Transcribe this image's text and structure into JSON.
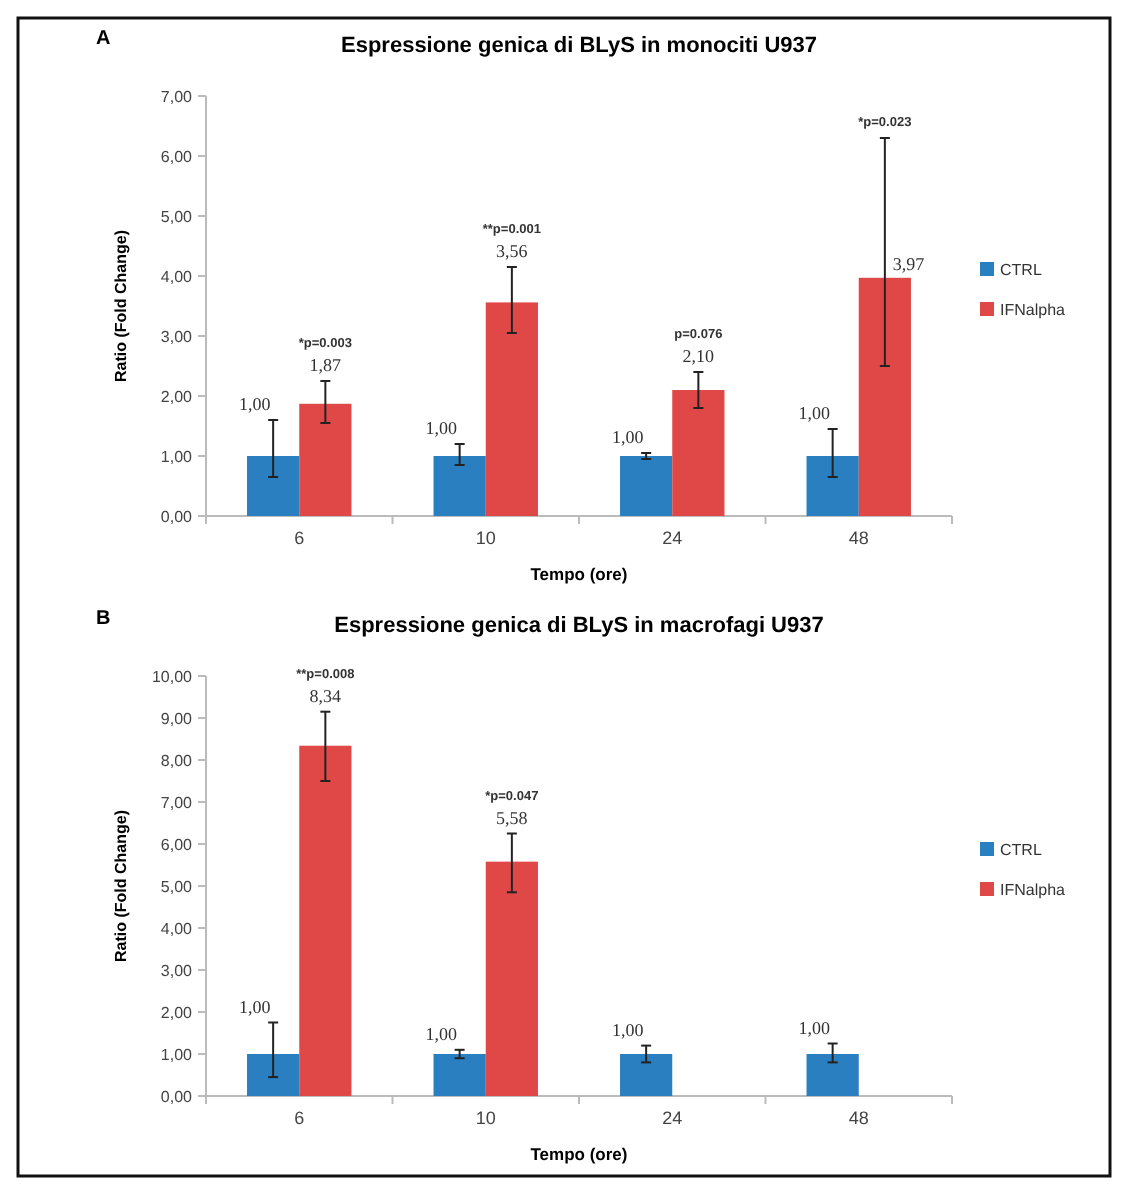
{
  "chart_data": [
    {
      "type": "bar",
      "title": "Espressione genica di BLyS in monociti U937",
      "xlabel": "Tempo (ore)",
      "ylabel": "Ratio (Fold Change)",
      "categories": [
        "6",
        "10",
        "24",
        "48"
      ],
      "ylim": [
        0,
        7
      ],
      "yticks": [
        {
          "value": 0,
          "label": "0,00"
        },
        {
          "value": 1,
          "label": "1,00"
        },
        {
          "value": 2,
          "label": "2,00"
        },
        {
          "value": 3,
          "label": "3,00"
        },
        {
          "value": 4,
          "label": "4,00"
        },
        {
          "value": 5,
          "label": "5,00"
        },
        {
          "value": 6,
          "label": "6,00"
        },
        {
          "value": 7,
          "label": "7,00"
        }
      ],
      "legend": "right",
      "series": [
        {
          "name": "CTRL",
          "color": "#2a7fc0",
          "values": [
            1.0,
            1.0,
            1.0,
            1.0
          ],
          "errors": [
            [
              0.65,
              1.6
            ],
            [
              0.85,
              1.2
            ],
            [
              0.95,
              1.05
            ],
            [
              0.65,
              1.45
            ]
          ],
          "value_labels": [
            "1,00",
            "1,00",
            "1,00",
            "1,00"
          ]
        },
        {
          "name": "IFNalpha",
          "color": "#e04848",
          "values": [
            1.87,
            3.56,
            2.1,
            3.97
          ],
          "errors": [
            [
              1.55,
              2.25
            ],
            [
              3.05,
              4.15
            ],
            [
              1.8,
              2.4
            ],
            [
              2.5,
              6.3
            ]
          ],
          "value_labels": [
            "1,87",
            "3,56",
            "2,10",
            "3,97"
          ]
        }
      ],
      "annotations": [
        "A",
        "*p=0.003",
        "**p=0.001",
        "p=0.076",
        "*p=0.023"
      ]
    },
    {
      "type": "bar",
      "title": "Espressione genica di BLyS in macrofagi U937",
      "xlabel": "Tempo (ore)",
      "ylabel": "Ratio (Fold Change)",
      "categories": [
        "6",
        "10",
        "24",
        "48"
      ],
      "ylim": [
        0,
        10
      ],
      "yticks": [
        {
          "value": 0,
          "label": "0,00"
        },
        {
          "value": 1,
          "label": "1,00"
        },
        {
          "value": 2,
          "label": "2,00"
        },
        {
          "value": 3,
          "label": "3,00"
        },
        {
          "value": 4,
          "label": "4,00"
        },
        {
          "value": 5,
          "label": "5,00"
        },
        {
          "value": 6,
          "label": "6,00"
        },
        {
          "value": 7,
          "label": "7,00"
        },
        {
          "value": 8,
          "label": "8,00"
        },
        {
          "value": 9,
          "label": "9,00"
        },
        {
          "value": 10,
          "label": "10,00"
        }
      ],
      "legend": "right",
      "series": [
        {
          "name": "CTRL",
          "color": "#2a7fc0",
          "values": [
            1.0,
            1.0,
            1.0,
            1.0
          ],
          "errors": [
            [
              0.45,
              1.75
            ],
            [
              0.9,
              1.1
            ],
            [
              0.8,
              1.2
            ],
            [
              0.8,
              1.25
            ]
          ],
          "value_labels": [
            "1,00",
            "1,00",
            "1,00",
            "1,00"
          ]
        },
        {
          "name": "IFNalpha",
          "color": "#e04848",
          "values": [
            8.34,
            5.58,
            null,
            null
          ],
          "errors": [
            [
              7.5,
              9.15
            ],
            [
              4.85,
              6.25
            ],
            null,
            null
          ],
          "value_labels": [
            "8,34",
            "5,58",
            null,
            null
          ]
        }
      ],
      "annotations": [
        "B",
        "**p=0.008",
        "*p=0.047"
      ]
    }
  ]
}
